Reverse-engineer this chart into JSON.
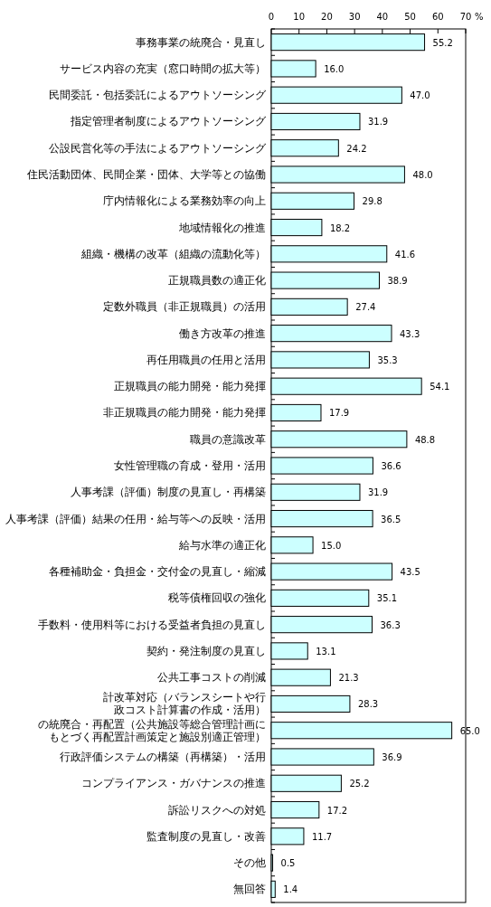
{
  "chart_data": {
    "type": "bar",
    "orientation": "horizontal",
    "xlabel": "%",
    "xlim": [
      0,
      70
    ],
    "xticks": [
      0,
      10,
      20,
      30,
      40,
      50,
      60,
      70
    ],
    "grid": false,
    "color": "#ccffff",
    "categories": [
      "事務事業の統廃合・見直し",
      "サービス内容の充実（窓口時間の拡大等）",
      "民間委託・包括委託によるアウトソーシング",
      "指定管理者制度によるアウトソーシング",
      "公設民営化等の手法によるアウトソーシング",
      "住民活動団体、民間企業・団体、大学等との協働",
      "庁内情報化による業務効率の向上",
      "地域情報化の推進",
      "組織・機構の改革（組織の流動化等）",
      "正規職員数の適正化",
      "定数外職員（非正規職員）の活用",
      "働き方改革の推進",
      "再任用職員の任用と活用",
      "正規職員の能力開発・能力発揮",
      "非正規職員の能力開発・能力発揮",
      "職員の意識改革",
      "女性管理職の育成・登用・活用",
      "人事考課（評価）制度の見直し・再構築",
      "人事考課（評価）結果の任用・給与等への反映・活用",
      "給与水準の適正化",
      "各種補助金・負担金・交付金の見直し・縮減",
      "税等債権回収の強化",
      "手数料・使用料等における受益者負担の見直し",
      "契約・発注制度の見直し",
      "公共工事コストの削減",
      "計改革対応（バランスシートや行政コスト計算書の作成・活用）",
      "の統廃合・再配置（公共施設等総合管理計画にもとづく再配置計画策定と施設別適正管理）",
      "行政評価システムの構築（再構築）・活用",
      "コンプライアンス・ガバナンスの推進",
      "訴訟リスクへの対処",
      "監査制度の見直し・改善",
      "その他",
      "無回答"
    ],
    "values": [
      55.2,
      16.0,
      47.0,
      31.9,
      24.2,
      48.0,
      29.8,
      18.2,
      41.6,
      38.9,
      27.4,
      43.3,
      35.3,
      54.1,
      17.9,
      48.8,
      36.6,
      31.9,
      36.5,
      15.0,
      43.5,
      35.1,
      36.3,
      13.1,
      21.3,
      28.3,
      65.0,
      36.9,
      25.2,
      17.2,
      11.7,
      0.5,
      1.4
    ],
    "value_labels": [
      "55.2",
      "16.0",
      "47.0",
      "31.9",
      "24.2",
      "48.0",
      "29.8",
      "18.2",
      "41.6",
      "38.9",
      "27.4",
      "43.3",
      "35.3",
      "54.1",
      "17.9",
      "48.8",
      "36.6",
      "31.9",
      "36.5",
      "15.0",
      "43.5",
      "35.1",
      "36.3",
      "13.1",
      "21.3",
      "28.3",
      "65.0",
      "36.9",
      "25.2",
      "17.2",
      "11.7",
      "0.5",
      "1.4"
    ]
  }
}
